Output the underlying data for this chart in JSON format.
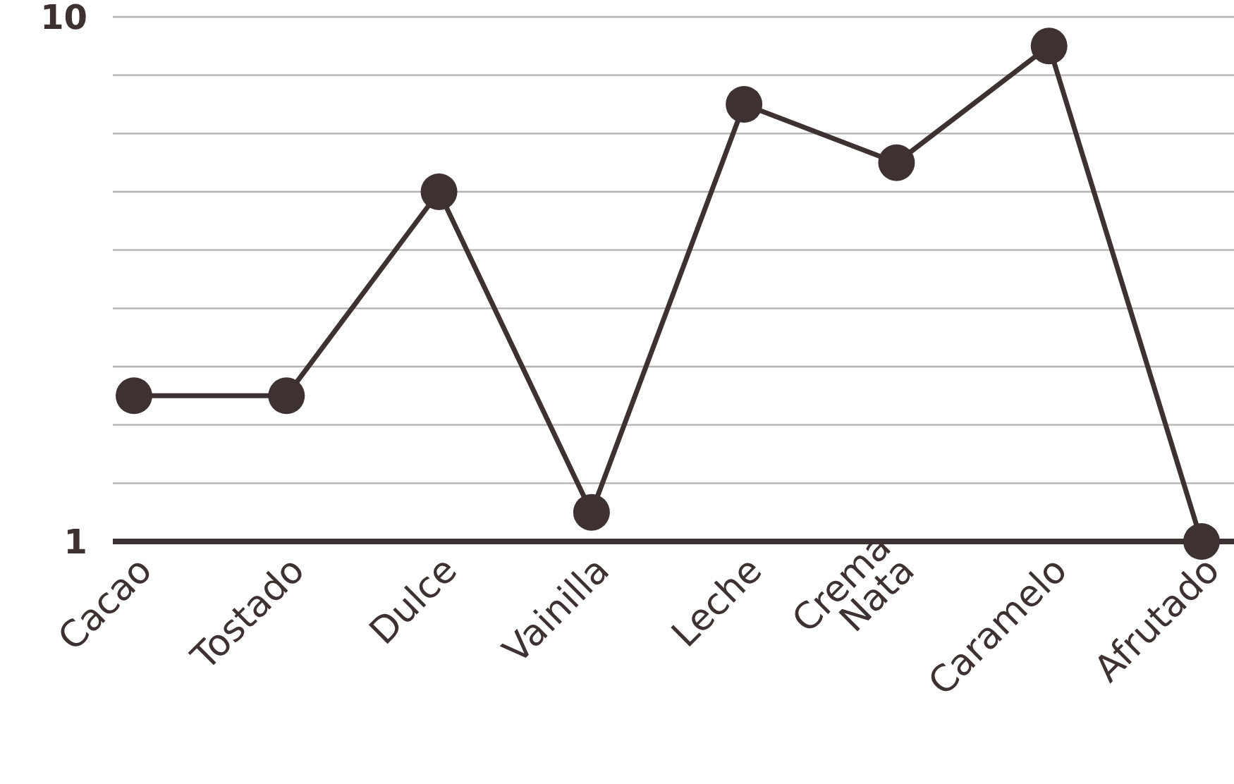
{
  "chart_data": {
    "type": "line",
    "categories": [
      "Cacao",
      "Tostado",
      "Dulce",
      "Vainilla",
      "Leche",
      "Crema Nata",
      "Caramelo",
      "Afrutado"
    ],
    "series": [
      {
        "color": "#3d3132",
        "values": [
          3.5,
          3.5,
          7,
          1.5,
          8.5,
          7.5,
          9.5,
          1
        ]
      }
    ],
    "ylim": [
      1,
      10
    ],
    "yticks": [
      1,
      {
        "value": 2,
        "label": null
      },
      {
        "value": 3,
        "label": null
      },
      {
        "value": 4,
        "label": null
      },
      {
        "value": 5,
        "label": null
      },
      {
        "value": 6,
        "label": null
      },
      {
        "value": 7,
        "label": null
      },
      {
        "value": 8,
        "label": null
      },
      {
        "value": 9,
        "label": null
      },
      10
    ],
    "grid": "y",
    "marker": "circle",
    "line_style": "solid"
  }
}
